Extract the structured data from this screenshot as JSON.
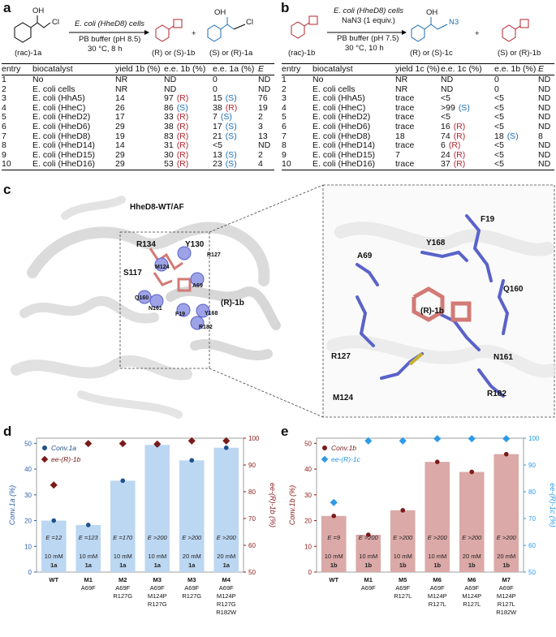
{
  "panels": {
    "a": "a",
    "b": "b",
    "c": "c",
    "d": "d",
    "e": "e"
  },
  "scheme_a": {
    "cond1": "E. coli (HheD8) cells",
    "cond2": "PB buffer (pH 8.5)",
    "cond3": "30 °C, 8 h",
    "sub": "(rac)-1a",
    "prod1": "(R) or (S)-1b",
    "prod2": "(S) or (R)-1a",
    "plus": "+",
    "oh": "OH",
    "cl": "Cl"
  },
  "scheme_b": {
    "cond1": "E. coli (HheD8) cells",
    "cond2": "NaN3 (1 equiv.)",
    "cond3": "PB buffer (pH 7.5)",
    "cond4": "30 °C, 10 h",
    "sub": "(rac)-1b",
    "prod1": "(R) or (S)-1c",
    "prod2": "(S) or (R)-1b",
    "plus": "+",
    "oh": "OH",
    "n3": "N3"
  },
  "table_a": {
    "headers": [
      "entry",
      "biocatalyst",
      "yield 1b (%)",
      "e.e. 1b (%)",
      "e.e. 1a (%)",
      "E"
    ],
    "rows": [
      {
        "entry": "1",
        "cat": "No",
        "yield": "NR",
        "ee1": "ND",
        "ee1c": "",
        "ee2": "0",
        "ee2c": "",
        "E": "ND"
      },
      {
        "entry": "2",
        "cat": "E. coli cells",
        "yield": "NR",
        "ee1": "ND",
        "ee1c": "",
        "ee2": "0",
        "ee2c": "",
        "E": "ND"
      },
      {
        "entry": "3",
        "cat": "E. coli (HhA5)",
        "yield": "14",
        "ee1": "97",
        "ee1c": "(R)",
        "ee2": "15",
        "ee2c": "(S)",
        "E": "76"
      },
      {
        "entry": "4",
        "cat": "E. coli (HheC)",
        "yield": "26",
        "ee1": "86",
        "ee1c": "(S)",
        "ee2": "38",
        "ee2c": "(R)",
        "E": "19"
      },
      {
        "entry": "5",
        "cat": "E. coli (HheD2)",
        "yield": "17",
        "ee1": "33",
        "ee1c": "(R)",
        "ee2": "7",
        "ee2c": "(S)",
        "E": "2"
      },
      {
        "entry": "6",
        "cat": "E. coli (HheD6)",
        "yield": "29",
        "ee1": "38",
        "ee1c": "(R)",
        "ee2": "17",
        "ee2c": "(S)",
        "E": "3"
      },
      {
        "entry": "7",
        "cat": "E. coli (HheD8)",
        "yield": "19",
        "ee1": "83",
        "ee1c": "(R)",
        "ee2": "21",
        "ee2c": "(S)",
        "E": "13"
      },
      {
        "entry": "8",
        "cat": "E. coli (HheD14)",
        "yield": "14",
        "ee1": "31",
        "ee1c": "(R)",
        "ee2": "<5",
        "ee2c": "",
        "E": "ND"
      },
      {
        "entry": "9",
        "cat": "E. coli (HheD15)",
        "yield": "29",
        "ee1": "30",
        "ee1c": "(R)",
        "ee2": "13",
        "ee2c": "(S)",
        "E": "2"
      },
      {
        "entry": "10",
        "cat": "E. coli (HheD16)",
        "yield": "29",
        "ee1": "53",
        "ee1c": "(R)",
        "ee2": "23",
        "ee2c": "(S)",
        "E": "4"
      }
    ]
  },
  "table_b": {
    "headers": [
      "entry",
      "biocatalyst",
      "yield 1c (%)",
      "e.e. 1c (%)",
      "e.e. 1b (%)",
      "E"
    ],
    "rows": [
      {
        "entry": "1",
        "cat": "No",
        "yield": "NR",
        "ee1": "ND",
        "ee1c": "",
        "ee2": "0",
        "ee2c": "",
        "E": "ND"
      },
      {
        "entry": "2",
        "cat": "E. coli cells",
        "yield": "NR",
        "ee1": "ND",
        "ee1c": "",
        "ee2": "0",
        "ee2c": "",
        "E": "ND"
      },
      {
        "entry": "3",
        "cat": "E. coli (HhA5)",
        "yield": "trace",
        "ee1": "<5",
        "ee1c": "",
        "ee2": "<5",
        "ee2c": "",
        "E": "ND"
      },
      {
        "entry": "4",
        "cat": "E. coli (HheC)",
        "yield": "trace",
        "ee1": ">99",
        "ee1c": "(S)",
        "ee2": "<5",
        "ee2c": "",
        "E": "ND"
      },
      {
        "entry": "5",
        "cat": "E. coli (HheD2)",
        "yield": "trace",
        "ee1": "<5",
        "ee1c": "",
        "ee2": "<5",
        "ee2c": "",
        "E": "ND"
      },
      {
        "entry": "6",
        "cat": "E. coli (HheD6)",
        "yield": "trace",
        "ee1": "16",
        "ee1c": "(R)",
        "ee2": "<5",
        "ee2c": "",
        "E": "ND"
      },
      {
        "entry": "7",
        "cat": "E. coli (HheD8)",
        "yield": "18",
        "ee1": "74",
        "ee1c": "(R)",
        "ee2": "18",
        "ee2c": "(S)",
        "E": "8"
      },
      {
        "entry": "8",
        "cat": "E. coli (HheD14)",
        "yield": "trace",
        "ee1": "6",
        "ee1c": "(R)",
        "ee2": "<5",
        "ee2c": "",
        "E": "ND"
      },
      {
        "entry": "9",
        "cat": "E. coli (HheD15)",
        "yield": "7",
        "ee1": "24",
        "ee1c": "(R)",
        "ee2": "<5",
        "ee2c": "",
        "E": "ND"
      },
      {
        "entry": "10",
        "cat": "E. coli (HheD16)",
        "yield": "trace",
        "ee1": "37",
        "ee1c": "(R)",
        "ee2": "<5",
        "ee2c": "",
        "E": "ND"
      }
    ]
  },
  "structure": {
    "title": "HheD8-WT/AF",
    "ligand": "(R)-1b",
    "left_labels": [
      "R134",
      "Y130",
      "S117",
      "M124",
      "R127",
      "A69",
      "Q160",
      "N161",
      "F19",
      "Y168",
      "R182"
    ],
    "right_labels": [
      "F19",
      "Y168",
      "A69",
      "Q160",
      "(R)-1b",
      "R127",
      "N161",
      "M124",
      "R182"
    ]
  },
  "chart_data": [
    {
      "type": "bar",
      "panel": "d",
      "categories": [
        "WT",
        "M1 A69F",
        "M2 A69F R127G",
        "M3 A69F M124P R127G",
        "M3 A69F R127G",
        "M4 A69F M124P R127G R182W"
      ],
      "cat_lines": [
        [
          "WT"
        ],
        [
          "M1",
          "A69F"
        ],
        [
          "M2",
          "A69F",
          "R127G"
        ],
        [
          "M3",
          "A69F",
          "M124P",
          "R127G"
        ],
        [
          "M3",
          "A69F",
          "R127G"
        ],
        [
          "M4",
          "A69F",
          "M124P",
          "R127G",
          "R182W"
        ]
      ],
      "E_labels": [
        "E =12",
        "E =123",
        "E =170",
        "E >200",
        "E >200",
        "E >200"
      ],
      "conc_labels": [
        "10 mM",
        "10 mM",
        "10 mM",
        "10 mM",
        "20 mM",
        "20 mM"
      ],
      "sub_labels": [
        "1a",
        "1a",
        "1a",
        "1a",
        "1a",
        "1a"
      ],
      "series": [
        {
          "name": "Conv.1a",
          "values": [
            20,
            18.3,
            35.5,
            49.4,
            43.4,
            48.3
          ]
        },
        {
          "name": "ee-(R)-1b",
          "values": [
            82.5,
            98,
            98,
            97.8,
            99,
            99
          ]
        }
      ],
      "ylabel_left": "Conv.1a (%)",
      "ylabel_right": "ee-(R)-1b (%)",
      "ylim_left": [
        0,
        52
      ],
      "ylim_right": [
        50,
        100
      ],
      "yticks_left": [
        0,
        10,
        20,
        30,
        40,
        50
      ],
      "yticks_right": [
        50,
        60,
        70,
        80,
        90,
        100
      ],
      "legend": "top-left"
    },
    {
      "type": "bar",
      "panel": "e",
      "categories": [
        "WT",
        "M1 A69F",
        "M5 A69F R127L",
        "M6 A69F M124P R127L",
        "M6 A69F M124P R127L",
        "M7 A69F M124P R127L R182W"
      ],
      "cat_lines": [
        [
          "WT"
        ],
        [
          "M1",
          "A69F"
        ],
        [
          "M5",
          "A69F",
          "R127L"
        ],
        [
          "M6",
          "A69F",
          "M124P",
          "R127L"
        ],
        [
          "M6",
          "A69F",
          "M124P",
          "R127L"
        ],
        [
          "M7",
          "A69F",
          "M124P",
          "R127L",
          "R182W"
        ]
      ],
      "E_labels": [
        "E =9",
        "E >200",
        "E >200",
        "E >200",
        "E >200",
        "E >200"
      ],
      "conc_labels": [
        "10 mM",
        "10 mM",
        "10 mM",
        "10 mM",
        "20 mM",
        "20 mM"
      ],
      "sub_labels": [
        "1b",
        "1b",
        "1b",
        "1b",
        "1b",
        "1b"
      ],
      "series": [
        {
          "name": "Conv.1b",
          "values": [
            21.8,
            14.5,
            24,
            42.8,
            38.9,
            45.8
          ]
        },
        {
          "name": "ee-(R)-1c",
          "values": [
            76,
            99,
            99,
            99.8,
            99.8,
            99.8
          ]
        }
      ],
      "ylabel_left": "Conv.1b (%)",
      "ylabel_right": "ee-(R)-1c (%)",
      "ylim_left": [
        0,
        52
      ],
      "ylim_right": [
        50,
        100
      ],
      "yticks_left": [
        0,
        10,
        20,
        30,
        40,
        50
      ],
      "yticks_right": [
        50,
        60,
        70,
        80,
        90,
        100
      ],
      "legend": "top-left"
    }
  ],
  "colors": {
    "bar_d": "#bcd7f2",
    "bar_e": "#dba9a7",
    "conv_d": "#1e4f8f",
    "ee_d": "#7b1a1a",
    "conv_e": "#7b1a1a",
    "ee_e": "#2b9ae8",
    "axis_left": "#2c5fa8",
    "axis_right_d": "#8b1a1a",
    "axis_left_e": "#8b1a1a",
    "axis_right_e": "#2b9ae8"
  }
}
